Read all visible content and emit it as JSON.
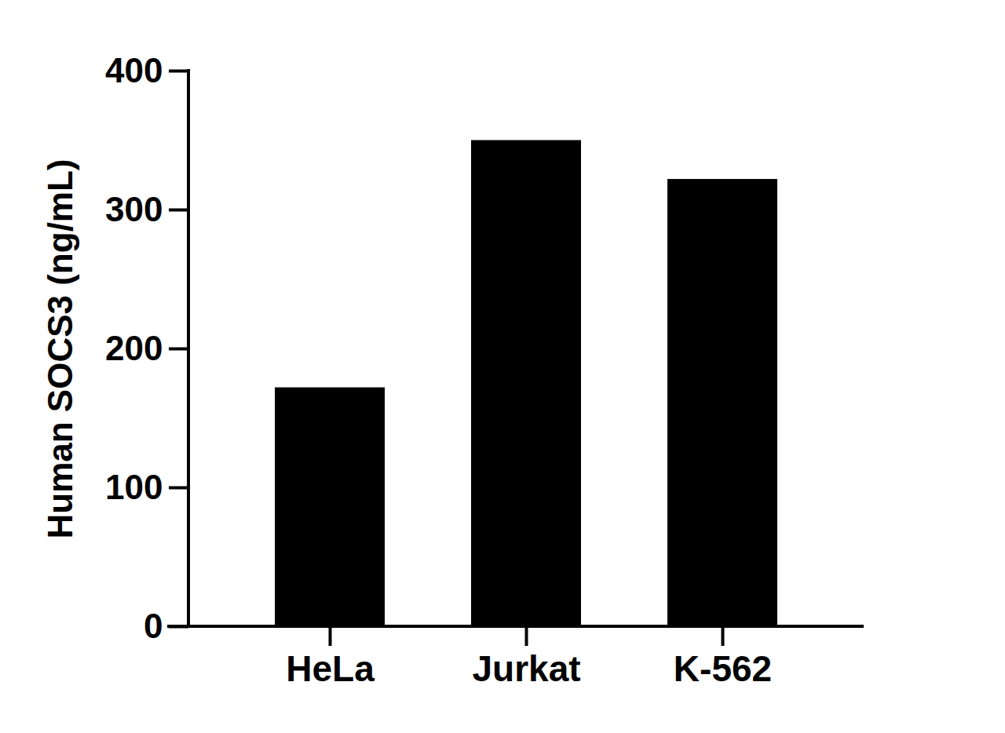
{
  "chart_data": {
    "type": "bar",
    "ylabel": "Human SOCS3 (ng/mL)",
    "categories": [
      "HeLa",
      "Jurkat",
      "K-562"
    ],
    "values": [
      172,
      350,
      322
    ],
    "color": "#000000",
    "ylim": [
      0,
      400
    ],
    "yticks": [
      0,
      100,
      200,
      300,
      400
    ],
    "grid": false
  }
}
